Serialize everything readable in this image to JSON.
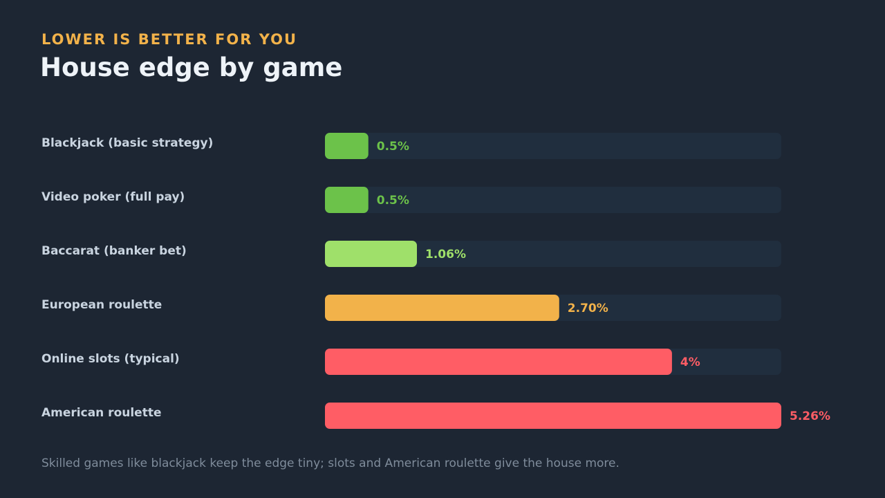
{
  "header": {
    "subtitle": "LOWER IS BETTER FOR YOU",
    "title": "House edge by game"
  },
  "footnote": "Skilled games like blackjack keep the edge tiny; slots and American roulette give the house more.",
  "colors": {
    "background": "#1d2633",
    "track": "#202e3e",
    "green": "#6cc24a",
    "light_green": "#9fe06a",
    "amber": "#f2b24a",
    "red": "#ff5d65"
  },
  "chart_data": {
    "type": "bar",
    "orientation": "horizontal",
    "categories": [
      "Blackjack (basic strategy)",
      "Video poker (full pay)",
      "Baccarat (banker bet)",
      "European roulette",
      "Online slots (typical)",
      "American roulette"
    ],
    "values": [
      0.5,
      0.5,
      1.06,
      2.7,
      4,
      5.26
    ],
    "value_labels": [
      "0.5%",
      "0.5%",
      "1.06%",
      "2.70%",
      "4%",
      "5.26%"
    ],
    "bar_colors": [
      "#6cc24a",
      "#6cc24a",
      "#9fe06a",
      "#f2b24a",
      "#ff5d65",
      "#ff5d65"
    ],
    "xlim": [
      0,
      5.26
    ],
    "grid": false,
    "legend": "none"
  }
}
